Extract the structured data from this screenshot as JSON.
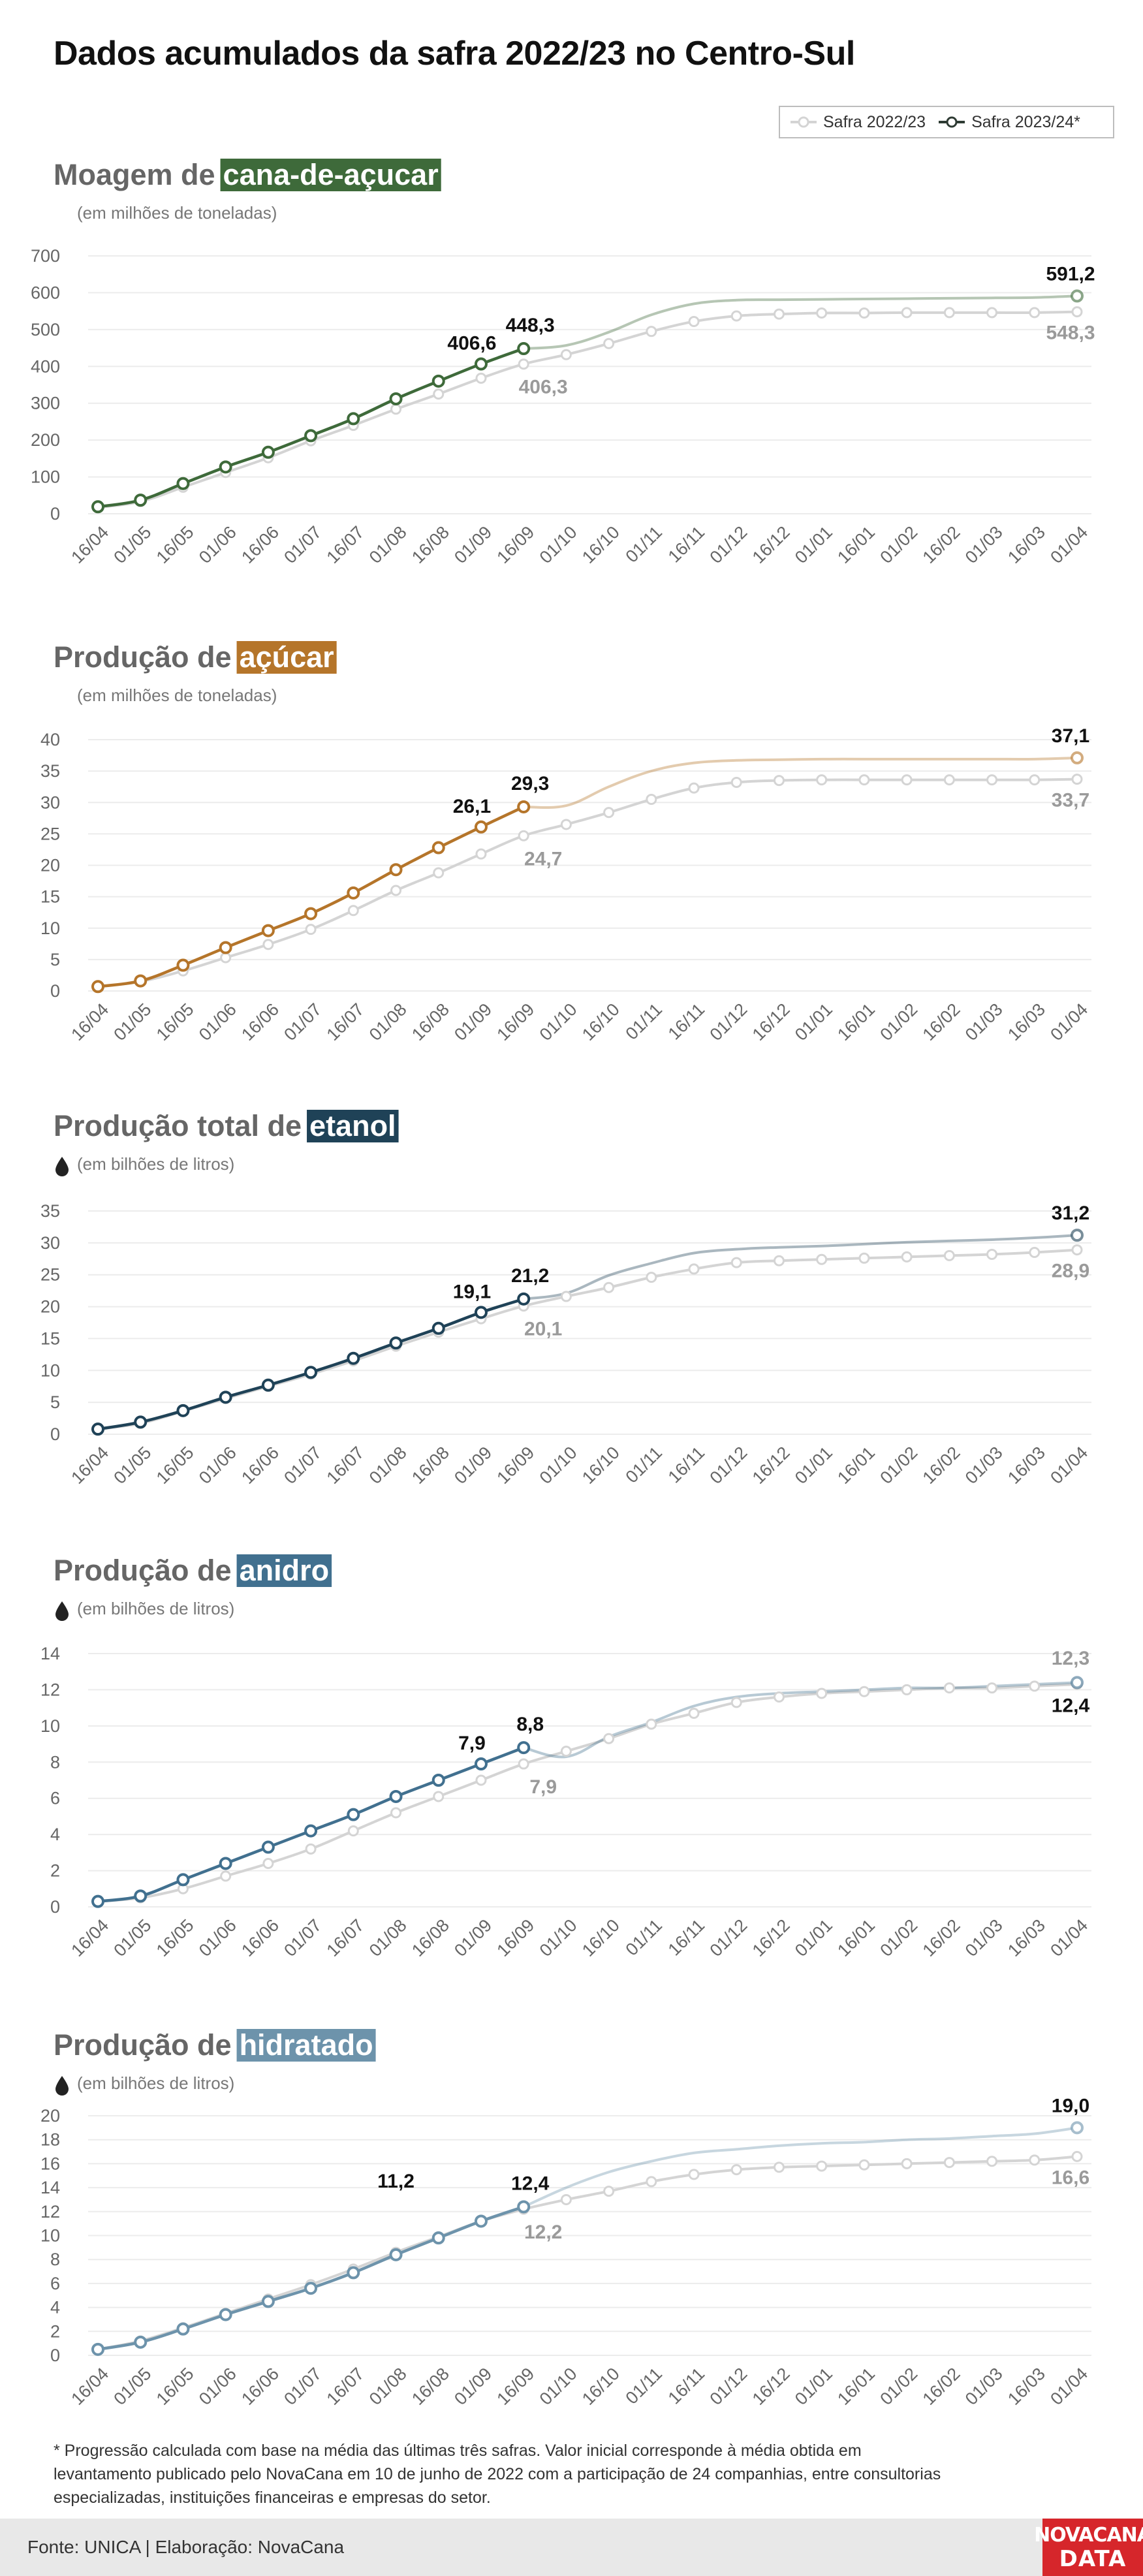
{
  "title": "Dados acumulados da safra 2022/23 no Centro-Sul",
  "legend": {
    "prev": "Safra 2022/23",
    "curr": "Safra 2023/24*"
  },
  "footnote": "* Progressão calculada com base na média das últimas três safras. Valor inicial corresponde à média obtida em levantamento publicado pelo NovaCana em 10 de junho de 2022 com a participação de 24 companhias, entre consultorias especializadas, instituições financeiras e empresas do setor.",
  "source": "Fonte: UNICA | Elaboração: NovaCana",
  "logo": {
    "line1": "NOVACANA",
    "line2": "DATA"
  },
  "colors": {
    "prev": "#d4d4d4",
    "cana": "#3e6a3a",
    "acucar": "#b5752a",
    "etanol": "#1f4257",
    "anidro": "#41708f",
    "hidratado": "#6d93ab",
    "grid": "#ececec",
    "axis_text": "#666666"
  },
  "chart_data": [
    {
      "type": "line",
      "title_prefix": "Moagem de",
      "title_highlight": "cana-de-açucar",
      "subtitle": "(em milhões de toneladas)",
      "categories": [
        "16/04",
        "01/05",
        "16/05",
        "01/06",
        "16/06",
        "01/07",
        "16/07",
        "01/08",
        "16/08",
        "01/09",
        "16/09",
        "01/10",
        "16/10",
        "01/11",
        "16/11",
        "01/12",
        "16/12",
        "01/01",
        "16/01",
        "01/02",
        "16/02",
        "01/03",
        "16/03",
        "01/04"
      ],
      "ylim": [
        0,
        700
      ],
      "yticks": [
        0,
        100,
        200,
        300,
        400,
        500,
        600,
        700
      ],
      "series": [
        {
          "name": "Safra 2022/23",
          "values": [
            17,
            33,
            72,
            112,
            152,
            198,
            240,
            284,
            325,
            368,
            406.3,
            432,
            462,
            495,
            522,
            537,
            542,
            545,
            545,
            546,
            546,
            546,
            546,
            548.3
          ]
        },
        {
          "name": "Safra 2023/24*",
          "values": [
            19,
            37,
            82,
            127,
            167,
            212,
            258,
            312,
            360,
            406.6,
            448.3,
            457,
            493,
            540,
            570,
            580,
            581,
            582,
            583,
            584,
            585,
            586,
            587,
            591.2
          ],
          "projected_from": 11
        }
      ],
      "labels": {
        "curr_pre": "406,6",
        "curr_last": "448,3",
        "prev_last": "406,3",
        "curr_end": "591,2",
        "prev_end": "548,3"
      }
    },
    {
      "type": "line",
      "title_prefix": "Produção de",
      "title_highlight": "açúcar",
      "subtitle": "(em milhões de toneladas)",
      "categories": [
        "16/04",
        "01/05",
        "16/05",
        "01/06",
        "16/06",
        "01/07",
        "16/07",
        "01/08",
        "16/08",
        "01/09",
        "16/09",
        "01/10",
        "16/10",
        "01/11",
        "16/11",
        "01/12",
        "16/12",
        "01/01",
        "16/01",
        "01/02",
        "16/02",
        "01/03",
        "16/03",
        "01/04"
      ],
      "ylim": [
        0,
        40
      ],
      "yticks": [
        0,
        5,
        10,
        15,
        20,
        25,
        30,
        35,
        40
      ],
      "series": [
        {
          "name": "Safra 2022/23",
          "values": [
            0.7,
            1.5,
            3.2,
            5.3,
            7.4,
            9.8,
            12.8,
            16.0,
            18.8,
            21.8,
            24.7,
            26.5,
            28.4,
            30.5,
            32.3,
            33.2,
            33.5,
            33.6,
            33.6,
            33.6,
            33.6,
            33.6,
            33.6,
            33.7
          ]
        },
        {
          "name": "Safra 2023/24*",
          "values": [
            0.7,
            1.6,
            4.1,
            6.9,
            9.6,
            12.3,
            15.6,
            19.3,
            22.8,
            26.1,
            29.3,
            29.5,
            32.5,
            35.0,
            36.3,
            36.7,
            36.8,
            36.9,
            36.9,
            36.9,
            36.9,
            36.9,
            36.9,
            37.1
          ],
          "projected_from": 11
        }
      ],
      "labels": {
        "curr_pre": "26,1",
        "curr_last": "29,3",
        "prev_last": "24,7",
        "curr_end": "37,1",
        "prev_end": "33,7"
      }
    },
    {
      "type": "line",
      "title_prefix": "Produção total de",
      "title_highlight": "etanol",
      "subtitle": "(em bilhões de litros)",
      "categories": [
        "16/04",
        "01/05",
        "16/05",
        "01/06",
        "16/06",
        "01/07",
        "16/07",
        "01/08",
        "16/08",
        "01/09",
        "16/09",
        "01/10",
        "16/10",
        "01/11",
        "16/11",
        "01/12",
        "16/12",
        "01/01",
        "16/01",
        "01/02",
        "16/02",
        "01/03",
        "16/03",
        "01/04"
      ],
      "ylim": [
        0,
        35
      ],
      "yticks": [
        0,
        5,
        10,
        15,
        20,
        25,
        30,
        35
      ],
      "series": [
        {
          "name": "Safra 2022/23",
          "values": [
            0.8,
            1.7,
            3.6,
            5.6,
            7.5,
            9.4,
            11.5,
            13.8,
            16.0,
            18.1,
            20.1,
            21.6,
            23.0,
            24.6,
            25.9,
            26.9,
            27.2,
            27.4,
            27.6,
            27.8,
            28.0,
            28.2,
            28.5,
            28.9
          ]
        },
        {
          "name": "Safra 2023/24*",
          "values": [
            0.8,
            1.9,
            3.7,
            5.8,
            7.7,
            9.7,
            11.9,
            14.3,
            16.6,
            19.1,
            21.2,
            22.1,
            24.9,
            26.8,
            28.4,
            29.0,
            29.3,
            29.5,
            29.8,
            30.1,
            30.3,
            30.5,
            30.8,
            31.2
          ],
          "projected_from": 11
        }
      ],
      "labels": {
        "curr_pre": "19,1",
        "curr_last": "21,2",
        "prev_last": "20,1",
        "curr_end": "31,2",
        "prev_end": "28,9"
      }
    },
    {
      "type": "line",
      "title_prefix": "Produção de",
      "title_highlight": "anidro",
      "subtitle": "(em bilhões de litros)",
      "categories": [
        "16/04",
        "01/05",
        "16/05",
        "01/06",
        "16/06",
        "01/07",
        "16/07",
        "01/08",
        "16/08",
        "01/09",
        "16/09",
        "01/10",
        "16/10",
        "01/11",
        "16/11",
        "01/12",
        "16/12",
        "01/01",
        "16/01",
        "01/02",
        "16/02",
        "01/03",
        "16/03",
        "01/04"
      ],
      "ylim": [
        0,
        14
      ],
      "yticks": [
        0,
        2,
        4,
        6,
        8,
        10,
        12,
        14
      ],
      "series": [
        {
          "name": "Safra 2022/23",
          "values": [
            0.3,
            0.5,
            1.0,
            1.7,
            2.4,
            3.2,
            4.2,
            5.2,
            6.1,
            7.0,
            7.9,
            8.6,
            9.3,
            10.1,
            10.7,
            11.3,
            11.6,
            11.8,
            11.9,
            12.0,
            12.1,
            12.1,
            12.2,
            12.3
          ]
        },
        {
          "name": "Safra 2023/24*",
          "values": [
            0.3,
            0.6,
            1.5,
            2.4,
            3.3,
            4.2,
            5.1,
            6.1,
            7.0,
            7.9,
            8.8,
            8.3,
            9.4,
            10.2,
            11.1,
            11.6,
            11.8,
            11.9,
            12.0,
            12.1,
            12.1,
            12.2,
            12.3,
            12.4
          ],
          "projected_from": 11
        }
      ],
      "labels": {
        "curr_pre": "7,9",
        "curr_last": "8,8",
        "prev_last": "7,9",
        "curr_end": "12,4",
        "prev_end": "12,3"
      }
    },
    {
      "type": "line",
      "title_prefix": "Produção de",
      "title_highlight": "hidratado",
      "subtitle": "(em bilhões de litros)",
      "categories": [
        "16/04",
        "01/05",
        "16/05",
        "01/06",
        "16/06",
        "01/07",
        "16/07",
        "01/08",
        "16/08",
        "01/09",
        "16/09",
        "01/10",
        "16/10",
        "01/11",
        "16/11",
        "01/12",
        "16/12",
        "01/01",
        "16/01",
        "01/02",
        "16/02",
        "01/03",
        "16/03",
        "01/04"
      ],
      "ylim": [
        0,
        20
      ],
      "yticks": [
        0,
        2,
        4,
        6,
        8,
        10,
        12,
        14,
        16,
        18,
        20
      ],
      "series": [
        {
          "name": "Safra 2022/23",
          "values": [
            0.5,
            1.2,
            2.3,
            3.5,
            4.7,
            5.9,
            7.2,
            8.6,
            9.9,
            11.2,
            12.2,
            13.0,
            13.7,
            14.5,
            15.1,
            15.5,
            15.7,
            15.8,
            15.9,
            16.0,
            16.1,
            16.2,
            16.3,
            16.6
          ]
        },
        {
          "name": "Safra 2023/24*",
          "values": [
            0.5,
            1.1,
            2.2,
            3.4,
            4.5,
            5.6,
            6.9,
            8.4,
            9.8,
            11.2,
            12.4,
            14.0,
            15.3,
            16.2,
            16.9,
            17.2,
            17.5,
            17.7,
            17.8,
            18.0,
            18.1,
            18.3,
            18.5,
            19.0
          ],
          "projected_from": 11
        }
      ],
      "labels": {
        "curr_pre": "11,2",
        "curr_last": "12,4",
        "prev_last": "12,2",
        "curr_end": "19,0",
        "prev_end": "16,6"
      }
    }
  ]
}
